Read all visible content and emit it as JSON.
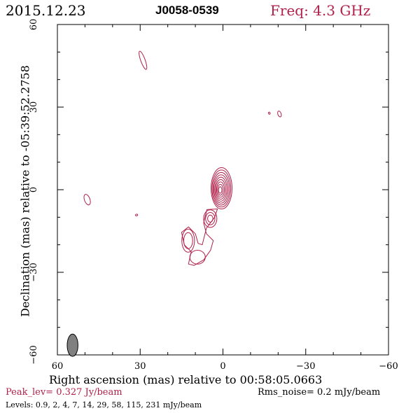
{
  "header": {
    "date": "2015.12.23",
    "source": "J0058-0539",
    "freq": "Freq: 4.3 GHz"
  },
  "footer": {
    "peak": "Peak_lev=  0.327 Jy/beam",
    "rms": "Rms_noise=   0.2 mJy/beam",
    "levels": "Levels: 0.9,   2,   4,   7,  14,  29,  58, 115, 231 mJy/beam"
  },
  "colors": {
    "contour": "#b0204a",
    "frame": "#000000",
    "beam_fill": "#808080"
  },
  "chart_data": {
    "type": "contour",
    "title": "J0058-0539",
    "xlabel": "Right ascension (mas) relative to 00:58:05.0663",
    "ylabel": "Declination (mas) relative to -05:39:52.2758",
    "xlim": [
      60,
      -60
    ],
    "ylim": [
      -60,
      60
    ],
    "x_ticks": [
      60,
      30,
      0,
      -30,
      -60
    ],
    "y_ticks": [
      -60,
      -30,
      0,
      30,
      60
    ],
    "x_tick_labels": [
      "60",
      "30",
      "0",
      "−30",
      "−60"
    ],
    "y_tick_labels": [
      "−60",
      "−30",
      "0",
      "30",
      "60"
    ],
    "peak_jy_per_beam": 0.327,
    "rms_noise_mjy_per_beam": 0.2,
    "levels_mjy_per_beam": [
      0.9,
      2,
      4,
      7,
      14,
      29,
      58,
      115,
      231
    ],
    "core": {
      "x": 0.5,
      "y": 0.5,
      "n_contours": 9,
      "rx_max": 3.8,
      "ry_max": 7.5
    },
    "jet_components": [
      {
        "x": 4.6,
        "y": -10.5,
        "rx": 2.4,
        "ry": 3.2,
        "n": 3
      },
      {
        "x": 12.6,
        "y": -18.5,
        "rx": 2.3,
        "ry": 4.2,
        "n": 2
      },
      {
        "x": 9.2,
        "y": -24.5,
        "rx": 2.8,
        "ry": 2.5,
        "n": 1
      }
    ],
    "isolated_blobs": [
      {
        "x": 49.2,
        "y": -3.6,
        "rx": 1.0,
        "ry": 2.0
      },
      {
        "x": -20.5,
        "y": 27.5,
        "rx": 0.6,
        "ry": 1.1
      },
      {
        "x": -16.8,
        "y": 27.8,
        "rx": 0.3,
        "ry": 0.4
      },
      {
        "x": 31.3,
        "y": -9.2,
        "rx": 0.4,
        "ry": 0.3
      },
      {
        "x": 29.0,
        "y": 47.0,
        "rx": 0.8,
        "ry": 3.5
      }
    ],
    "beam": {
      "x": 54.5,
      "y": -56.5,
      "major": 4.5,
      "minor": 3.0
    }
  }
}
